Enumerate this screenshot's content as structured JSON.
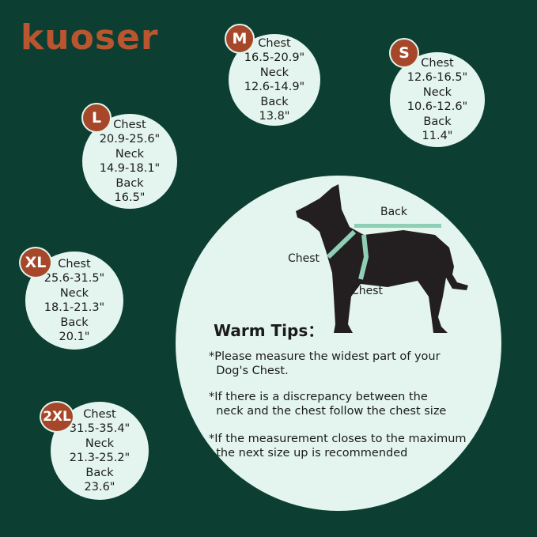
{
  "brand": {
    "logo_text": "kuoser"
  },
  "colors": {
    "background": "#0c3f32",
    "circle": "#e3f5ee",
    "badge": "#a7472a",
    "tape": "#8fcfb6"
  },
  "sizes": [
    {
      "size": "M",
      "chest_label": "Chest",
      "chest": "16.5-20.9\"",
      "neck_label": "Neck",
      "neck": "12.6-14.9\"",
      "back_label": "Back",
      "back": "13.8\""
    },
    {
      "size": "S",
      "chest_label": "Chest",
      "chest": "12.6-16.5\"",
      "neck_label": "Neck",
      "neck": "10.6-12.6\"",
      "back_label": "Back",
      "back": "11.4\""
    },
    {
      "size": "L",
      "chest_label": "Chest",
      "chest": "20.9-25.6\"",
      "neck_label": "Neck",
      "neck": "14.9-18.1\"",
      "back_label": "Back",
      "back": "16.5\""
    },
    {
      "size": "XL",
      "chest_label": "Chest",
      "chest": "25.6-31.5\"",
      "neck_label": "Neck",
      "neck": "18.1-21.3\"",
      "back_label": "Back",
      "back": "20.1\""
    },
    {
      "size": "2XL",
      "chest_label": "Chest",
      "chest": "31.5-35.4\"",
      "neck_label": "Neck",
      "neck": "21.3-25.2\"",
      "back_label": "Back",
      "back": "23.6\""
    }
  ],
  "diagram": {
    "back": "Back",
    "chest_neck": "Chest",
    "chest_body": "Chest"
  },
  "tips": {
    "title": "Warm Tips：",
    "items": [
      "*Please measure the widest part of your\n  Dog's Chest.",
      "*If there is a discrepancy between the\n  neck and the chest follow the chest size",
      "*If the measurement closes to the maximum\n  the next size up is recommended"
    ]
  }
}
